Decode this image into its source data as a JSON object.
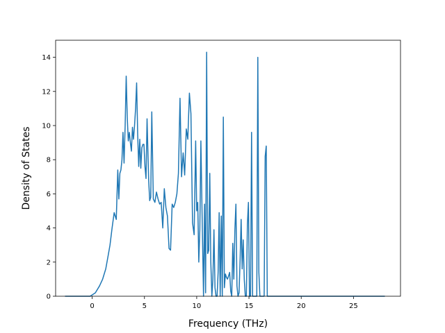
{
  "chart_data": {
    "type": "line",
    "title": "",
    "xlabel": "Frequency (THz)",
    "ylabel": "Density of States",
    "xlim": [
      -3.5,
      29.5
    ],
    "ylim": [
      0,
      15
    ],
    "xticks": [
      0,
      5,
      10,
      15,
      20,
      25
    ],
    "yticks": [
      0,
      2,
      4,
      6,
      8,
      10,
      12,
      14
    ],
    "grid": false,
    "legend": "none",
    "line_color": "#1f77b4",
    "series": [
      {
        "x": [
          -2.6,
          -0.2,
          0.3,
          0.7,
          1.0,
          1.3,
          1.5,
          1.7,
          1.9,
          2.1,
          2.3,
          2.45,
          2.55,
          2.65,
          2.75,
          2.85,
          2.95,
          3.05,
          3.15,
          3.25,
          3.35,
          3.45,
          3.55,
          3.65,
          3.75,
          3.85,
          3.95,
          4.05,
          4.15,
          4.25,
          4.35,
          4.45,
          4.55,
          4.65,
          4.75,
          4.85,
          4.95,
          5.05,
          5.15,
          5.25,
          5.4,
          5.5,
          5.6,
          5.7,
          5.85,
          6.0,
          6.15,
          6.3,
          6.45,
          6.6,
          6.75,
          6.9,
          7.05,
          7.2,
          7.35,
          7.5,
          7.65,
          7.8,
          7.95,
          8.1,
          8.25,
          8.4,
          8.55,
          8.7,
          8.85,
          9.0,
          9.15,
          9.3,
          9.45,
          9.6,
          9.75,
          9.9,
          10.0,
          10.1,
          10.2,
          10.3,
          10.4,
          10.55,
          10.65,
          10.75,
          10.85,
          10.95,
          11.05,
          11.15,
          11.25,
          11.35,
          11.45,
          11.55,
          11.65,
          11.75,
          11.85,
          11.95,
          12.05,
          12.15,
          12.25,
          12.35,
          12.45,
          12.55,
          12.65,
          12.75,
          12.85,
          12.95,
          13.05,
          13.15,
          13.25,
          13.35,
          13.45,
          13.55,
          13.65,
          13.75,
          13.85,
          13.95,
          14.05,
          14.15,
          14.25,
          14.35,
          14.45,
          14.55,
          14.65,
          14.75,
          14.85,
          14.95,
          15.05,
          15.15,
          15.25,
          15.35,
          15.45,
          15.55,
          15.65,
          15.75,
          15.85,
          15.95,
          16.05,
          16.15,
          16.25,
          16.35,
          16.45,
          16.55,
          16.65,
          16.75,
          16.85,
          16.95,
          17.05,
          17.15,
          17.25,
          17.35,
          17.45,
          17.55,
          17.65,
          17.75,
          17.85,
          17.95,
          18.05,
          18.15,
          18.25,
          18.35,
          18.45,
          18.55,
          18.65,
          18.75,
          18.85,
          18.95,
          19.05,
          19.15,
          19.25,
          28.0
        ],
        "values": [
          0,
          0,
          0.2,
          0.6,
          1.0,
          1.6,
          2.3,
          3.0,
          4.0,
          4.9,
          4.5,
          7.4,
          5.7,
          7.2,
          7.4,
          8.0,
          9.6,
          7.8,
          10.0,
          12.9,
          10.5,
          9.1,
          9.6,
          9.0,
          8.5,
          9.9,
          9.2,
          10.0,
          11.0,
          12.5,
          9.5,
          7.6,
          9.2,
          7.5,
          8.7,
          8.9,
          8.9,
          7.6,
          6.9,
          10.4,
          6.8,
          5.6,
          5.8,
          10.8,
          5.7,
          5.5,
          6.1,
          5.7,
          5.4,
          5.5,
          4.0,
          6.3,
          5.2,
          4.7,
          2.8,
          2.7,
          5.4,
          5.2,
          5.5,
          6.0,
          7.2,
          11.6,
          7.0,
          8.4,
          7.1,
          9.8,
          9.2,
          11.9,
          10.7,
          4.3,
          3.6,
          9.1,
          5.0,
          5.5,
          2.0,
          3.9,
          9.1,
          3.5,
          0.0,
          5.4,
          0.2,
          14.3,
          2.5,
          2.7,
          7.2,
          2.0,
          0.0,
          1.0,
          3.9,
          0.5,
          0.0,
          0.0,
          1.4,
          4.9,
          0.0,
          4.7,
          0.0,
          10.5,
          0.5,
          1.3,
          1.1,
          1.0,
          1.2,
          1.4,
          0.3,
          0.0,
          3.1,
          1.0,
          3.9,
          5.4,
          0.6,
          0.0,
          0.2,
          2.1,
          4.5,
          1.6,
          3.3,
          1.0,
          0.0,
          0.0,
          4.2,
          5.5,
          0.0,
          0.0,
          9.6,
          0.0,
          0.0,
          0.0,
          0.0,
          0.0,
          14.0,
          1.4,
          0.0,
          0.0,
          0.0,
          0.0,
          0.0,
          8.2,
          8.8,
          0.0,
          0.0,
          0.0,
          0.0,
          0.0,
          0.0,
          0.0,
          0.0,
          0.0,
          0.0,
          0.0,
          0.0,
          0.0,
          0.0,
          0.0,
          0.0,
          0.0,
          0.0,
          0.0,
          0.0,
          0.0,
          0.0,
          0.0,
          0.0,
          0.0,
          0.0,
          0.0
        ]
      }
    ]
  }
}
